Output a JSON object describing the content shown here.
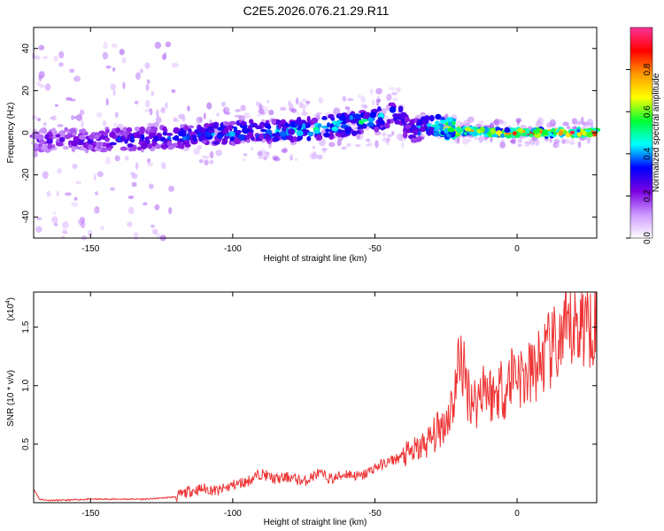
{
  "title": "C2E5.2026.076.21.29.R11",
  "colorbar": {
    "label": "Normalized spectral amplitude",
    "ticks": [
      "0.0",
      "0.2",
      "0.4",
      "0.6",
      "0.8"
    ],
    "tick_values": [
      0.0,
      0.2,
      0.4,
      0.6,
      0.8
    ],
    "range": [
      0,
      1
    ],
    "colors": [
      "#ffffff",
      "#cc99ff",
      "#7a00e0",
      "#0000ff",
      "#00ffff",
      "#00ff33",
      "#ffff00",
      "#ff9900",
      "#ff0000",
      "#ff3399"
    ]
  },
  "chart_data": [
    {
      "type": "heatmap",
      "title": "C2E5.2026.076.21.29.R11",
      "xlabel": "Height of straight line (km)",
      "ylabel": "Frequency (Hz)",
      "xlim": [
        -170,
        28
      ],
      "ylim": [
        -50,
        50
      ],
      "xticks": [
        -150,
        -100,
        -50,
        0
      ],
      "xtick_labels": [
        "-150",
        "-100",
        "-50",
        "0"
      ],
      "yticks": [
        40,
        20,
        0,
        -20,
        -40
      ],
      "ytick_labels": [
        "40",
        "20",
        "0",
        "-20",
        "-40"
      ],
      "ridge": {
        "x": [
          -170,
          -160,
          -150,
          -140,
          -130,
          -120,
          -110,
          -100,
          -90,
          -80,
          -70,
          -60,
          -50,
          -42,
          -38,
          -30,
          -25,
          -20,
          -15,
          -10,
          0,
          10,
          20,
          27
        ],
        "freq": [
          -4,
          -3,
          -4,
          -3,
          -3,
          -2,
          -1,
          0,
          1,
          1,
          2,
          4,
          6,
          10,
          0,
          4,
          2,
          1,
          1,
          0,
          0,
          0,
          0,
          0
        ],
        "amplitude": [
          0.3,
          0.25,
          0.3,
          0.35,
          0.35,
          0.4,
          0.4,
          0.45,
          0.45,
          0.5,
          0.55,
          0.55,
          0.5,
          0.45,
          0.4,
          0.5,
          0.7,
          0.8,
          0.85,
          0.9,
          0.95,
          0.95,
          0.95,
          0.95
        ]
      }
    },
    {
      "type": "line",
      "xlabel": "Height of straight line (km)",
      "ylabel": "SNR (10 * v/v)",
      "scale_label": "(x10",
      "scale_exponent": "4",
      "scale_suffix": ")",
      "xlim": [
        -170,
        28
      ],
      "ylim": [
        0,
        1.8
      ],
      "xticks": [
        -150,
        -100,
        -50,
        0
      ],
      "xtick_labels": [
        "-150",
        "-100",
        "-50",
        "0"
      ],
      "yticks": [
        0.5,
        1.0,
        1.5
      ],
      "ytick_labels": [
        "0.5",
        "1.0",
        "1.5"
      ],
      "series": [
        {
          "name": "SNR",
          "color": "#ee3333",
          "x": [
            -170,
            -168,
            -165,
            -160,
            -150,
            -140,
            -130,
            -125,
            -120,
            -115,
            -110,
            -105,
            -100,
            -95,
            -90,
            -85,
            -80,
            -75,
            -70,
            -65,
            -60,
            -55,
            -50,
            -45,
            -40,
            -35,
            -30,
            -25,
            -22,
            -20,
            -18,
            -16,
            -14,
            -12,
            -10,
            -8,
            -6,
            -4,
            -2,
            0,
            2,
            5,
            8,
            10,
            12,
            15,
            18,
            20,
            23,
            25,
            28
          ],
          "values": [
            0.12,
            0.03,
            0.02,
            0.02,
            0.03,
            0.03,
            0.03,
            0.04,
            0.05,
            0.1,
            0.12,
            0.1,
            0.15,
            0.18,
            0.25,
            0.2,
            0.22,
            0.18,
            0.25,
            0.2,
            0.25,
            0.22,
            0.3,
            0.35,
            0.4,
            0.45,
            0.55,
            0.7,
            0.9,
            1.3,
            1.0,
            0.9,
            0.85,
            1.05,
            0.95,
            0.9,
            1.0,
            0.95,
            1.1,
            1.15,
            1.05,
            1.1,
            1.2,
            1.25,
            1.3,
            1.35,
            1.45,
            1.5,
            1.55,
            1.58,
            1.6
          ]
        }
      ]
    }
  ]
}
